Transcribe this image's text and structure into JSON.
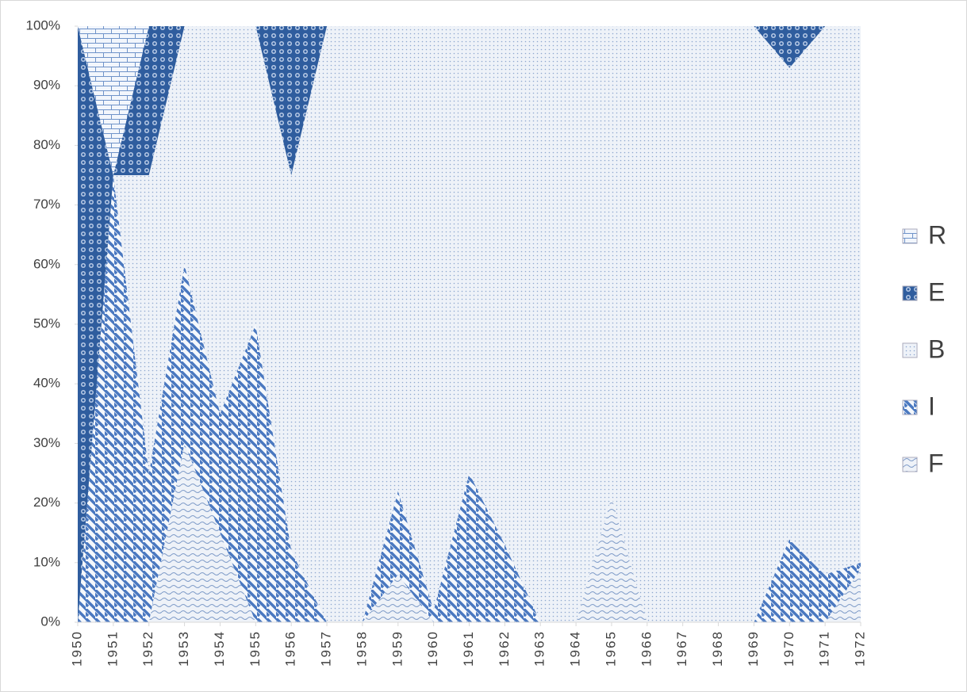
{
  "chart_data": {
    "type": "area_stacked_percent",
    "categories": [
      "1950",
      "1951",
      "1952",
      "1953",
      "1954",
      "1955",
      "1956",
      "1957",
      "1958",
      "1959",
      "1960",
      "1961",
      "1962",
      "1963",
      "1964",
      "1965",
      "1966",
      "1967",
      "1968",
      "1969",
      "1970",
      "1971",
      "1972"
    ],
    "series": [
      {
        "name": "R",
        "color": "#6f93c9",
        "values": [
          0,
          25,
          0,
          0,
          0,
          0,
          0,
          0,
          0,
          0,
          0,
          0,
          0,
          0,
          0,
          0,
          0,
          0,
          0,
          0,
          0,
          0,
          0
        ]
      },
      {
        "name": "E",
        "color": "#2f5d9e",
        "values": [
          100,
          0,
          25,
          0,
          0,
          0,
          25,
          0,
          0,
          0,
          0,
          0,
          0,
          0,
          0,
          0,
          0,
          0,
          0,
          0,
          7,
          0,
          0
        ]
      },
      {
        "name": "B",
        "color": "#8fa8cf",
        "values": [
          0,
          0,
          50,
          40,
          65,
          50,
          63,
          100,
          100,
          78,
          98,
          75,
          87,
          100,
          100,
          79,
          100,
          100,
          100,
          100,
          79,
          92,
          90
        ]
      },
      {
        "name": "I",
        "color": "#4a78c0",
        "values": [
          0,
          75,
          25,
          30,
          20,
          50,
          12,
          0,
          0,
          14,
          2,
          25,
          13,
          0,
          0,
          0,
          0,
          0,
          0,
          0,
          14,
          8,
          1
        ]
      },
      {
        "name": "F",
        "color": "#7e9bc8",
        "values": [
          0,
          0,
          0,
          30,
          15,
          0,
          0,
          0,
          0,
          8,
          0,
          0,
          0,
          0,
          0,
          21,
          0,
          0,
          0,
          0,
          0,
          0,
          9
        ]
      }
    ],
    "ylim": [
      0,
      100
    ],
    "yticks": [
      {
        "value": 0,
        "label": "0%"
      },
      {
        "value": 10,
        "label": "10%"
      },
      {
        "value": 20,
        "label": "20%"
      },
      {
        "value": 30,
        "label": "30%"
      },
      {
        "value": 40,
        "label": "40%"
      },
      {
        "value": 50,
        "label": "50%"
      },
      {
        "value": 60,
        "label": "60%"
      },
      {
        "value": 70,
        "label": "70%"
      },
      {
        "value": 80,
        "label": "80%"
      },
      {
        "value": 90,
        "label": "90%"
      },
      {
        "value": 100,
        "label": "100%"
      }
    ],
    "legend": "right"
  }
}
